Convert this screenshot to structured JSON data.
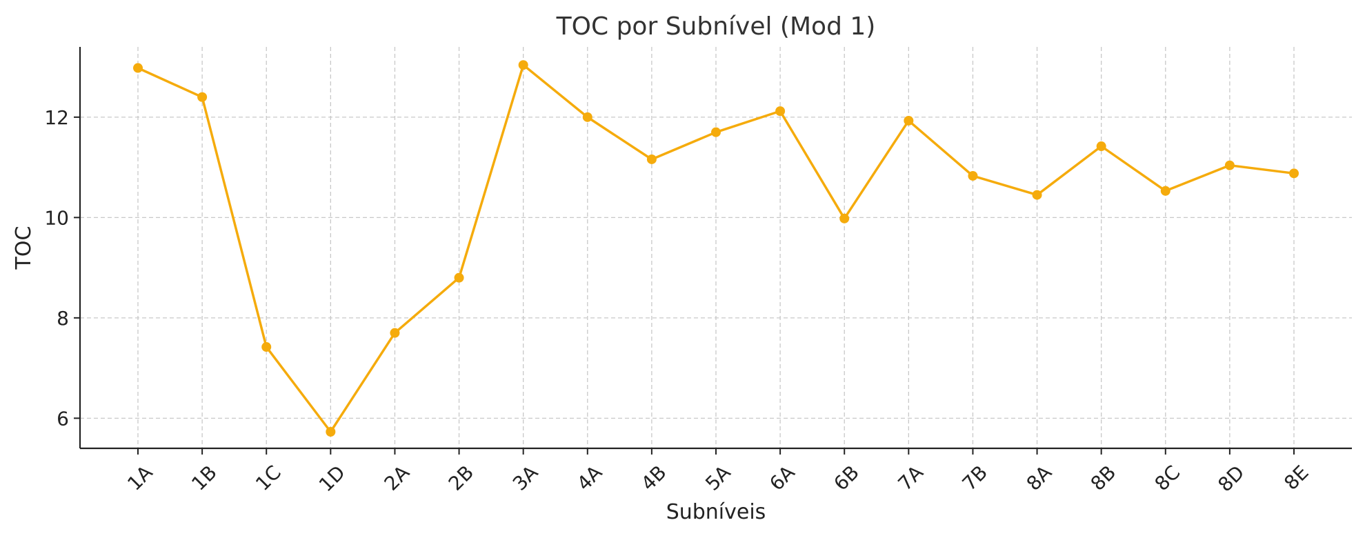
{
  "chart_data": {
    "type": "line",
    "title": "TOC por Subnível (Mod 1)",
    "xlabel": "Subníveis",
    "ylabel": "TOC",
    "categories": [
      "1A",
      "1B",
      "1C",
      "1D",
      "2A",
      "2B",
      "3A",
      "4A",
      "4B",
      "5A",
      "6A",
      "6B",
      "7A",
      "7B",
      "8A",
      "8B",
      "8C",
      "8D",
      "8E"
    ],
    "series": [
      {
        "values": [
          12.98,
          12.4,
          7.42,
          5.73,
          7.7,
          8.8,
          13.04,
          12.0,
          11.16,
          11.7,
          12.12,
          9.98,
          11.93,
          10.83,
          10.45,
          11.42,
          10.53,
          11.04,
          10.88
        ]
      }
    ],
    "ylim": [
      5.4,
      13.4
    ],
    "yticks": [
      6,
      8,
      10,
      12
    ],
    "grid": true,
    "line_color": "#F5AB0C"
  }
}
